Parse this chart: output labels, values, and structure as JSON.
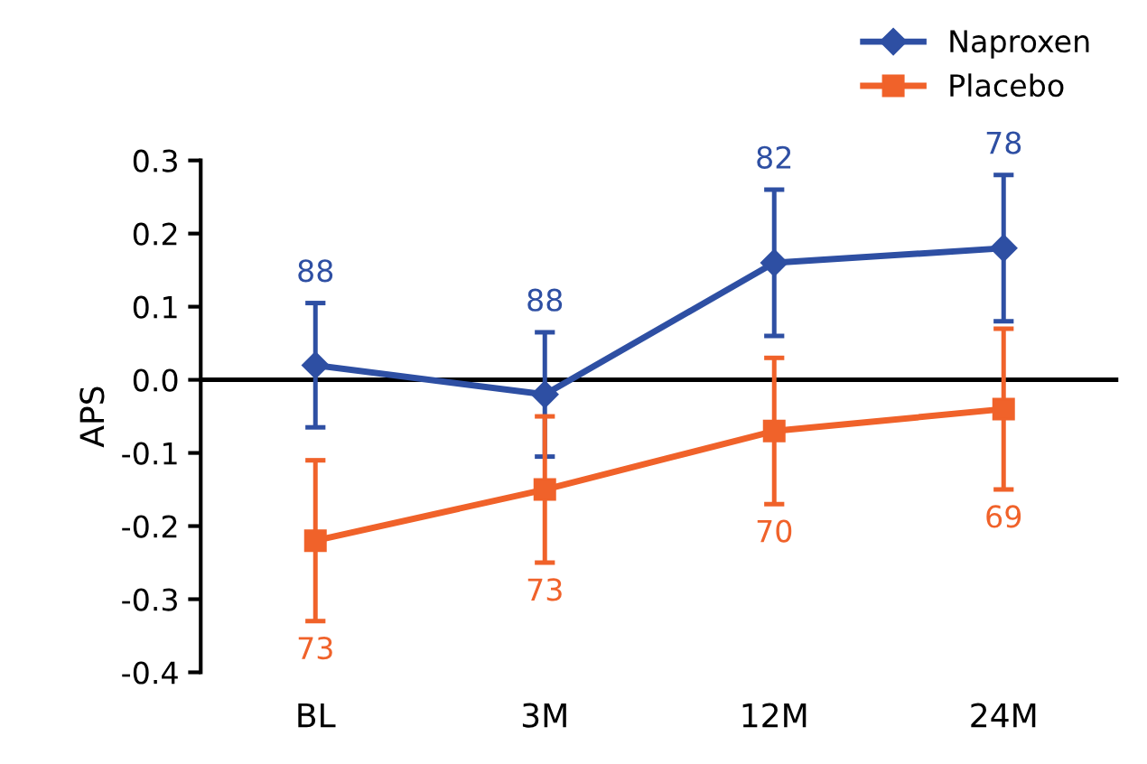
{
  "chart_data": {
    "type": "line",
    "ylabel": "APS",
    "categories": [
      "BL",
      "3M",
      "12M",
      "24M"
    ],
    "series": [
      {
        "name": "Naproxen",
        "color": "#2e4fa3",
        "marker": "diamond",
        "values": [
          0.02,
          -0.02,
          0.16,
          0.18
        ],
        "errors": [
          0.085,
          0.085,
          0.1,
          0.1
        ]
      },
      {
        "name": "Placebo",
        "color": "#f0622a",
        "marker": "square",
        "values": [
          -0.22,
          -0.15,
          -0.07,
          -0.04
        ],
        "errors": [
          0.11,
          0.1,
          0.1,
          0.11
        ]
      }
    ],
    "annotations": [
      {
        "text": "88",
        "x": "BL",
        "y": 0.105
      },
      {
        "text": "88",
        "x": "3M",
        "y": 0.065
      },
      {
        "text": "82",
        "x": "12M",
        "y": 0.26
      },
      {
        "text": "78",
        "x": "24M",
        "y": 0.28
      },
      {
        "text": "73",
        "x": "BL",
        "y": -0.33
      },
      {
        "text": "73",
        "x": "3M",
        "y": -0.25
      },
      {
        "text": "70",
        "x": "12M",
        "y": -0.17
      },
      {
        "text": "69",
        "x": "24M",
        "y": -0.15
      }
    ],
    "ref_lines": [
      {
        "axis": "y",
        "value": 0,
        "color": "#000000"
      }
    ],
    "ylim": [
      -0.4,
      0.3
    ],
    "yticks": [
      -0.4,
      -0.3,
      -0.2,
      -0.1,
      {
        "value": 0,
        "label": "0.0"
      },
      0.1,
      0.2,
      0.3
    ],
    "grid": false,
    "legend": "top right"
  }
}
